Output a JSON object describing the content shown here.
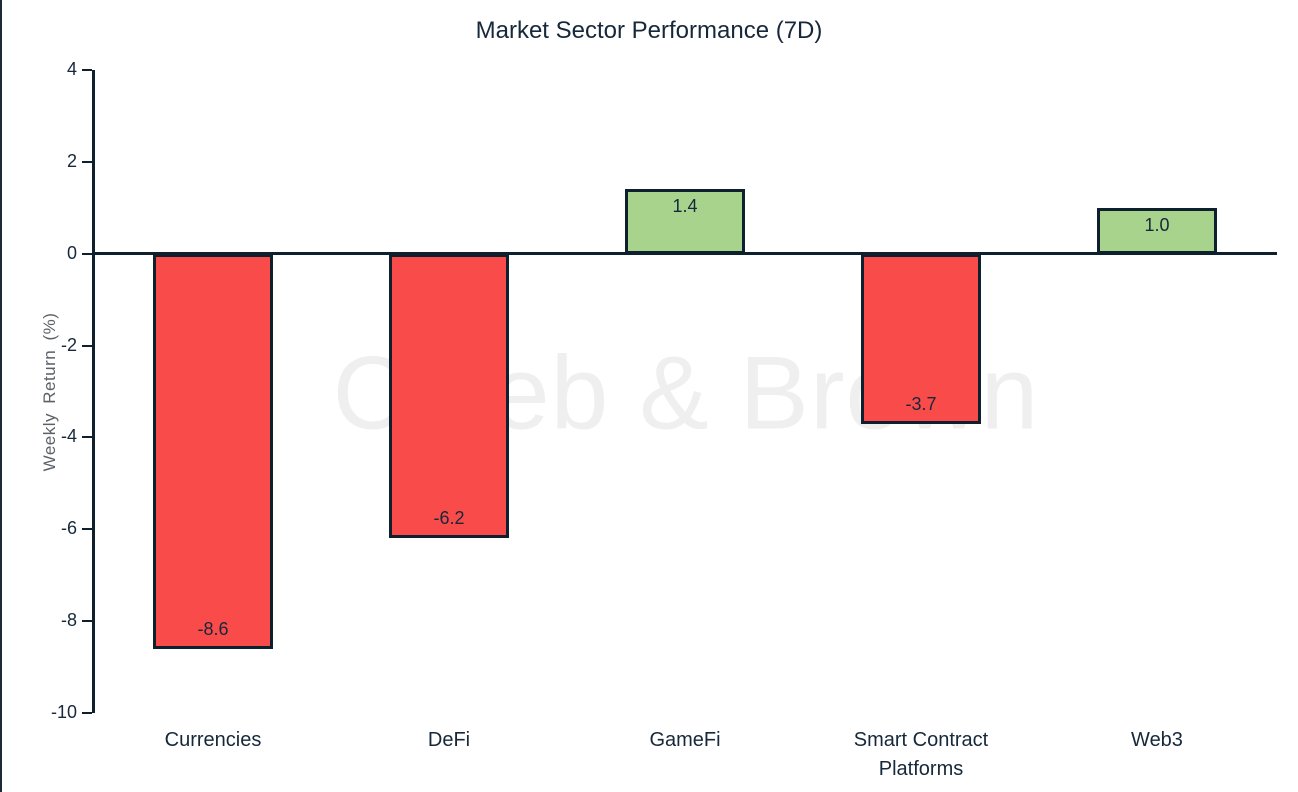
{
  "page": {
    "title": "Market Sector Performance (7D)"
  },
  "chart_data": {
    "type": "bar",
    "title": "Market Sector Performance (7D)",
    "xlabel": "",
    "ylabel": "Weekly Return (%)",
    "categories": [
      "Currencies",
      "DeFi",
      "GameFi",
      "Smart Contract Platforms",
      "Web3"
    ],
    "values": [
      -8.6,
      -6.2,
      1.4,
      -3.7,
      1.0
    ],
    "value_labels": [
      "-8.6",
      "-6.2",
      "1.4",
      "-3.7",
      "1.0"
    ],
    "ylim": [
      -10,
      4
    ],
    "yticks": [
      4,
      2,
      0,
      -2,
      -4,
      -6,
      -8,
      -10
    ],
    "grid": false,
    "legend": false,
    "watermark": "Caleb & Brown",
    "colors": {
      "positive_bar": "#a8d38c",
      "negative_bar": "#fa4b4b",
      "bar_border": "#0e1f2e",
      "axis_line": "#0e1f2e",
      "tick_text": "#16283a",
      "title_text": "#16283a",
      "ylabel_text": "#5a6168",
      "watermark_text": "#efefef",
      "background": "#ffffff"
    }
  }
}
